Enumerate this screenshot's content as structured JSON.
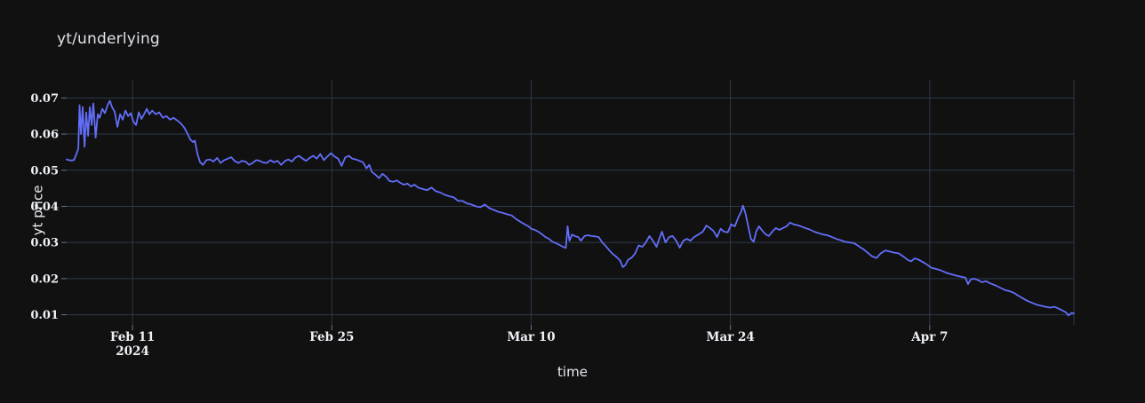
{
  "chart": {
    "title": "yt/underlying",
    "colors": {
      "background": "#111111",
      "grid": "#2d3a4a",
      "line": "#636efa",
      "tick_text": "#eef1f6",
      "title_text": "#dfe3ea"
    }
  },
  "chart_data": {
    "type": "line",
    "title": "yt/underlying",
    "xlabel": "time",
    "ylabel": "yt price",
    "legend": false,
    "grid": true,
    "x_unit": "days since 2024-02-06",
    "x_range": [
      0.375,
      71.125
    ],
    "ylim": [
      0.0072,
      0.075
    ],
    "y_ticks": [
      0.01,
      0.02,
      0.03,
      0.04,
      0.05,
      0.06,
      0.07
    ],
    "y_tick_format": "2dp",
    "x_ticks": [
      {
        "day": 5,
        "label": "Feb 11",
        "sublabel": "2024"
      },
      {
        "day": 19,
        "label": "Feb 25",
        "sublabel": ""
      },
      {
        "day": 33,
        "label": "Mar 10",
        "sublabel": ""
      },
      {
        "day": 47,
        "label": "Mar 24",
        "sublabel": ""
      },
      {
        "day": 61,
        "label": "Apr 7",
        "sublabel": ""
      }
    ],
    "series": [
      {
        "name": "yt/underlying",
        "line_color": "#636efa",
        "points": [
          [
            0.38,
            0.053
          ],
          [
            0.63,
            0.0527
          ],
          [
            0.88,
            0.0528
          ],
          [
            1.06,
            0.0545
          ],
          [
            1.19,
            0.056
          ],
          [
            1.28,
            0.068
          ],
          [
            1.38,
            0.06
          ],
          [
            1.5,
            0.0675
          ],
          [
            1.63,
            0.0565
          ],
          [
            1.75,
            0.066
          ],
          [
            1.88,
            0.0595
          ],
          [
            2.0,
            0.0675
          ],
          [
            2.13,
            0.0625
          ],
          [
            2.25,
            0.0685
          ],
          [
            2.41,
            0.059
          ],
          [
            2.56,
            0.0655
          ],
          [
            2.69,
            0.0645
          ],
          [
            2.88,
            0.067
          ],
          [
            3.06,
            0.0658
          ],
          [
            3.25,
            0.068
          ],
          [
            3.41,
            0.0692
          ],
          [
            3.56,
            0.0675
          ],
          [
            3.75,
            0.0662
          ],
          [
            3.94,
            0.062
          ],
          [
            4.13,
            0.0655
          ],
          [
            4.31,
            0.064
          ],
          [
            4.5,
            0.0665
          ],
          [
            4.69,
            0.065
          ],
          [
            4.88,
            0.0658
          ],
          [
            5.06,
            0.0635
          ],
          [
            5.25,
            0.0625
          ],
          [
            5.44,
            0.066
          ],
          [
            5.63,
            0.0642
          ],
          [
            5.81,
            0.0655
          ],
          [
            6.0,
            0.067
          ],
          [
            6.19,
            0.0655
          ],
          [
            6.38,
            0.0665
          ],
          [
            6.63,
            0.0655
          ],
          [
            6.88,
            0.066
          ],
          [
            7.13,
            0.0645
          ],
          [
            7.38,
            0.065
          ],
          [
            7.63,
            0.064
          ],
          [
            7.88,
            0.0645
          ],
          [
            8.13,
            0.0638
          ],
          [
            8.38,
            0.063
          ],
          [
            8.63,
            0.0618
          ],
          [
            8.88,
            0.06
          ],
          [
            9.06,
            0.0585
          ],
          [
            9.25,
            0.0578
          ],
          [
            9.38,
            0.0582
          ],
          [
            9.56,
            0.0545
          ],
          [
            9.75,
            0.0522
          ],
          [
            9.94,
            0.0515
          ],
          [
            10.19,
            0.0528
          ],
          [
            10.44,
            0.053
          ],
          [
            10.69,
            0.0524
          ],
          [
            10.94,
            0.0534
          ],
          [
            11.19,
            0.052
          ],
          [
            11.44,
            0.0528
          ],
          [
            11.69,
            0.0532
          ],
          [
            11.94,
            0.0536
          ],
          [
            12.19,
            0.0525
          ],
          [
            12.44,
            0.052
          ],
          [
            12.69,
            0.0526
          ],
          [
            12.94,
            0.0524
          ],
          [
            13.19,
            0.0515
          ],
          [
            13.44,
            0.052
          ],
          [
            13.69,
            0.0528
          ],
          [
            13.94,
            0.0526
          ],
          [
            14.19,
            0.0521
          ],
          [
            14.44,
            0.052
          ],
          [
            14.69,
            0.0528
          ],
          [
            14.94,
            0.0522
          ],
          [
            15.19,
            0.0526
          ],
          [
            15.44,
            0.0515
          ],
          [
            15.69,
            0.0525
          ],
          [
            15.94,
            0.053
          ],
          [
            16.19,
            0.0524
          ],
          [
            16.44,
            0.0535
          ],
          [
            16.69,
            0.054
          ],
          [
            16.94,
            0.0532
          ],
          [
            17.19,
            0.0526
          ],
          [
            17.44,
            0.0534
          ],
          [
            17.69,
            0.054
          ],
          [
            17.94,
            0.0532
          ],
          [
            18.19,
            0.0545
          ],
          [
            18.44,
            0.0528
          ],
          [
            18.69,
            0.0538
          ],
          [
            18.94,
            0.0547
          ],
          [
            19.19,
            0.0538
          ],
          [
            19.44,
            0.0532
          ],
          [
            19.69,
            0.0512
          ],
          [
            19.94,
            0.0535
          ],
          [
            20.19,
            0.054
          ],
          [
            20.44,
            0.0532
          ],
          [
            20.69,
            0.053
          ],
          [
            20.94,
            0.0526
          ],
          [
            21.19,
            0.0522
          ],
          [
            21.44,
            0.0505
          ],
          [
            21.63,
            0.0515
          ],
          [
            21.81,
            0.0495
          ],
          [
            22.06,
            0.0488
          ],
          [
            22.31,
            0.0478
          ],
          [
            22.56,
            0.049
          ],
          [
            22.81,
            0.0482
          ],
          [
            23.06,
            0.047
          ],
          [
            23.31,
            0.0468
          ],
          [
            23.56,
            0.0472
          ],
          [
            23.81,
            0.0465
          ],
          [
            24.06,
            0.046
          ],
          [
            24.31,
            0.0463
          ],
          [
            24.56,
            0.0455
          ],
          [
            24.81,
            0.046
          ],
          [
            25.06,
            0.0452
          ],
          [
            25.38,
            0.0448
          ],
          [
            25.69,
            0.0445
          ],
          [
            26.0,
            0.0452
          ],
          [
            26.31,
            0.0442
          ],
          [
            26.63,
            0.0438
          ],
          [
            26.94,
            0.0432
          ],
          [
            27.25,
            0.0428
          ],
          [
            27.56,
            0.0425
          ],
          [
            27.88,
            0.0415
          ],
          [
            28.19,
            0.0415
          ],
          [
            28.5,
            0.0408
          ],
          [
            28.81,
            0.0405
          ],
          [
            29.13,
            0.04
          ],
          [
            29.44,
            0.0398
          ],
          [
            29.75,
            0.0405
          ],
          [
            30.06,
            0.0395
          ],
          [
            30.38,
            0.039
          ],
          [
            30.69,
            0.0385
          ],
          [
            31.0,
            0.0382
          ],
          [
            31.31,
            0.0378
          ],
          [
            31.63,
            0.0375
          ],
          [
            31.94,
            0.0365
          ],
          [
            32.25,
            0.0357
          ],
          [
            32.56,
            0.035
          ],
          [
            32.81,
            0.0345
          ],
          [
            33.0,
            0.0338
          ],
          [
            33.25,
            0.0335
          ],
          [
            33.5,
            0.033
          ],
          [
            33.75,
            0.0323
          ],
          [
            34.0,
            0.0315
          ],
          [
            34.25,
            0.031
          ],
          [
            34.5,
            0.0302
          ],
          [
            34.75,
            0.0298
          ],
          [
            35.0,
            0.0293
          ],
          [
            35.25,
            0.0288
          ],
          [
            35.44,
            0.0285
          ],
          [
            35.56,
            0.0345
          ],
          [
            35.69,
            0.0305
          ],
          [
            35.88,
            0.0322
          ],
          [
            36.06,
            0.0318
          ],
          [
            36.31,
            0.0315
          ],
          [
            36.5,
            0.0305
          ],
          [
            36.75,
            0.0318
          ],
          [
            37.0,
            0.032
          ],
          [
            37.25,
            0.0318
          ],
          [
            37.5,
            0.0317
          ],
          [
            37.75,
            0.0315
          ],
          [
            38.0,
            0.03
          ],
          [
            38.25,
            0.029
          ],
          [
            38.5,
            0.0278
          ],
          [
            38.75,
            0.0268
          ],
          [
            39.0,
            0.026
          ],
          [
            39.25,
            0.025
          ],
          [
            39.44,
            0.0232
          ],
          [
            39.63,
            0.0238
          ],
          [
            39.81,
            0.0252
          ],
          [
            40.06,
            0.0258
          ],
          [
            40.31,
            0.027
          ],
          [
            40.56,
            0.0292
          ],
          [
            40.81,
            0.0288
          ],
          [
            41.06,
            0.03
          ],
          [
            41.31,
            0.0318
          ],
          [
            41.56,
            0.0305
          ],
          [
            41.81,
            0.0288
          ],
          [
            42.0,
            0.031
          ],
          [
            42.19,
            0.033
          ],
          [
            42.44,
            0.03
          ],
          [
            42.69,
            0.0315
          ],
          [
            42.94,
            0.0318
          ],
          [
            43.19,
            0.0305
          ],
          [
            43.44,
            0.0286
          ],
          [
            43.69,
            0.0305
          ],
          [
            43.94,
            0.031
          ],
          [
            44.19,
            0.0305
          ],
          [
            44.44,
            0.0315
          ],
          [
            44.75,
            0.0322
          ],
          [
            45.06,
            0.033
          ],
          [
            45.31,
            0.0347
          ],
          [
            45.56,
            0.034
          ],
          [
            45.81,
            0.0332
          ],
          [
            46.06,
            0.0315
          ],
          [
            46.31,
            0.0338
          ],
          [
            46.56,
            0.033
          ],
          [
            46.81,
            0.0328
          ],
          [
            47.06,
            0.035
          ],
          [
            47.31,
            0.0345
          ],
          [
            47.56,
            0.037
          ],
          [
            47.75,
            0.0385
          ],
          [
            47.88,
            0.0402
          ],
          [
            48.06,
            0.038
          ],
          [
            48.25,
            0.0345
          ],
          [
            48.44,
            0.031
          ],
          [
            48.63,
            0.0302
          ],
          [
            48.81,
            0.033
          ],
          [
            49.0,
            0.0345
          ],
          [
            49.25,
            0.0332
          ],
          [
            49.5,
            0.0322
          ],
          [
            49.69,
            0.0318
          ],
          [
            49.94,
            0.033
          ],
          [
            50.19,
            0.034
          ],
          [
            50.44,
            0.0335
          ],
          [
            50.69,
            0.034
          ],
          [
            50.94,
            0.0345
          ],
          [
            51.19,
            0.0355
          ],
          [
            51.44,
            0.035
          ],
          [
            51.69,
            0.0348
          ],
          [
            51.94,
            0.0345
          ],
          [
            52.25,
            0.034
          ],
          [
            52.56,
            0.0336
          ],
          [
            52.88,
            0.033
          ],
          [
            53.19,
            0.0326
          ],
          [
            53.5,
            0.0322
          ],
          [
            53.81,
            0.032
          ],
          [
            54.13,
            0.0315
          ],
          [
            54.44,
            0.031
          ],
          [
            54.75,
            0.0306
          ],
          [
            55.06,
            0.0302
          ],
          [
            55.38,
            0.03
          ],
          [
            55.69,
            0.0298
          ],
          [
            56.0,
            0.029
          ],
          [
            56.31,
            0.0282
          ],
          [
            56.63,
            0.0272
          ],
          [
            56.94,
            0.0262
          ],
          [
            57.25,
            0.0257
          ],
          [
            57.56,
            0.027
          ],
          [
            57.88,
            0.0278
          ],
          [
            58.19,
            0.0275
          ],
          [
            58.5,
            0.0272
          ],
          [
            58.81,
            0.027
          ],
          [
            59.13,
            0.0262
          ],
          [
            59.44,
            0.0252
          ],
          [
            59.69,
            0.0248
          ],
          [
            59.94,
            0.0256
          ],
          [
            60.19,
            0.0253
          ],
          [
            60.69,
            0.0242
          ],
          [
            61.13,
            0.023
          ],
          [
            61.63,
            0.0225
          ],
          [
            62.25,
            0.0215
          ],
          [
            62.88,
            0.0208
          ],
          [
            63.5,
            0.0203
          ],
          [
            63.69,
            0.0185
          ],
          [
            63.88,
            0.0198
          ],
          [
            64.13,
            0.02
          ],
          [
            64.44,
            0.0195
          ],
          [
            64.69,
            0.019
          ],
          [
            64.94,
            0.0193
          ],
          [
            65.19,
            0.0188
          ],
          [
            65.44,
            0.0184
          ],
          [
            65.69,
            0.018
          ],
          [
            66.0,
            0.0174
          ],
          [
            66.31,
            0.0168
          ],
          [
            66.63,
            0.0165
          ],
          [
            66.94,
            0.016
          ],
          [
            67.25,
            0.0152
          ],
          [
            67.56,
            0.0145
          ],
          [
            67.88,
            0.0138
          ],
          [
            68.19,
            0.0133
          ],
          [
            68.5,
            0.0128
          ],
          [
            68.81,
            0.0125
          ],
          [
            69.13,
            0.0122
          ],
          [
            69.44,
            0.012
          ],
          [
            69.75,
            0.0122
          ],
          [
            70.06,
            0.0117
          ],
          [
            70.31,
            0.0112
          ],
          [
            70.56,
            0.0107
          ],
          [
            70.75,
            0.0098
          ],
          [
            70.94,
            0.0105
          ],
          [
            71.13,
            0.0104
          ]
        ]
      }
    ]
  }
}
